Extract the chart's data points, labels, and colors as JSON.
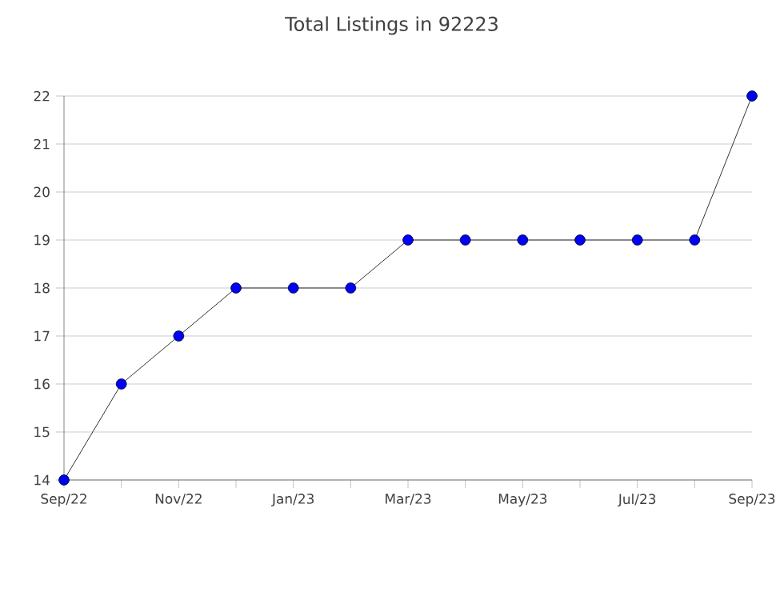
{
  "chart_data": {
    "type": "line",
    "title": "Total Listings in 92223",
    "categories": [
      "Sep/22",
      null,
      "Nov/22",
      null,
      "Jan/23",
      null,
      "Mar/23",
      null,
      "May/23",
      null,
      "Jul/23",
      null,
      "Sep/23"
    ],
    "series": [
      {
        "color": "#0000ff",
        "values": [
          14,
          16,
          17,
          18,
          18,
          18,
          19,
          19,
          19,
          19,
          19,
          19,
          22
        ]
      }
    ],
    "ylim": [
      14,
      22
    ],
    "yticks": [
      14,
      15,
      16,
      17,
      18,
      19,
      20,
      21,
      22
    ],
    "grid": "y",
    "marker": "circle",
    "line_style": "solid"
  }
}
